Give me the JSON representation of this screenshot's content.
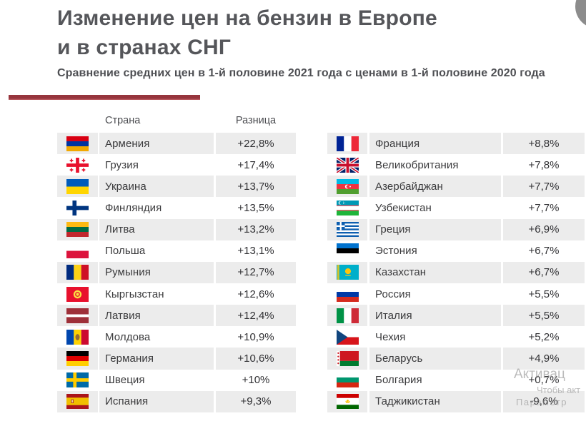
{
  "header": {
    "title_line1": "Изменение цен на бензин в Европе",
    "title_line2": "и в странах СНГ",
    "subtitle": "Сравнение средних цен в 1-й половине 2021 года с ценами в 1-й половине 2020 года"
  },
  "table": {
    "headers": {
      "country": "Страна",
      "difference": "Разница"
    },
    "left_rows": [
      {
        "country": "Армения",
        "difference": "+22,8%",
        "flag": "armenia"
      },
      {
        "country": "Грузия",
        "difference": "+17,4%",
        "flag": "georgia"
      },
      {
        "country": "Украина",
        "difference": "+13,7%",
        "flag": "ukraine"
      },
      {
        "country": "Финляндия",
        "difference": "+13,5%",
        "flag": "finland"
      },
      {
        "country": "Литва",
        "difference": "+13,2%",
        "flag": "lithuania"
      },
      {
        "country": "Польша",
        "difference": "+13,1%",
        "flag": "poland"
      },
      {
        "country": "Румыния",
        "difference": "+12,7%",
        "flag": "romania"
      },
      {
        "country": "Кыргызстан",
        "difference": "+12,6%",
        "flag": "kyrgyzstan"
      },
      {
        "country": "Латвия",
        "difference": "+12,4%",
        "flag": "latvia"
      },
      {
        "country": "Молдова",
        "difference": "+10,9%",
        "flag": "moldova"
      },
      {
        "country": "Германия",
        "difference": "+10,6%",
        "flag": "germany"
      },
      {
        "country": "Швеция",
        "difference": "+10%",
        "flag": "sweden"
      },
      {
        "country": "Испания",
        "difference": "+9,3%",
        "flag": "spain"
      }
    ],
    "right_rows": [
      {
        "country": "Франция",
        "difference": "+8,8%",
        "flag": "france"
      },
      {
        "country": "Великобритания",
        "difference": "+7,8%",
        "flag": "uk"
      },
      {
        "country": "Азербайджан",
        "difference": "+7,7%",
        "flag": "azerbaijan"
      },
      {
        "country": "Узбекистан",
        "difference": "+7,7%",
        "flag": "uzbekistan"
      },
      {
        "country": "Греция",
        "difference": "+6,9%",
        "flag": "greece"
      },
      {
        "country": "Эстония",
        "difference": "+6,7%",
        "flag": "estonia"
      },
      {
        "country": "Казахстан",
        "difference": "+6,7%",
        "flag": "kazakhstan"
      },
      {
        "country": "Россия",
        "difference": "+5,5%",
        "flag": "russia"
      },
      {
        "country": "Италия",
        "difference": "+5,5%",
        "flag": "italy"
      },
      {
        "country": "Чехия",
        "difference": "+5,2%",
        "flag": "czechia"
      },
      {
        "country": "Беларусь",
        "difference": "+4,9%",
        "flag": "belarus"
      },
      {
        "country": "Болгария",
        "difference": "+0,7%",
        "flag": "bulgaria"
      },
      {
        "country": "Таджикистан",
        "difference": "-9,6%",
        "flag": "tajikistan"
      }
    ]
  },
  "watermark": {
    "line1": "Активац",
    "line2": "Чтобы акт",
    "line3": "Параметр"
  },
  "colors": {
    "accent_red": "#96353D",
    "row_stripe": "#ECECEC",
    "title_text": "#55565A",
    "corner_circle": "#8C8C8C",
    "watermark_gray": "#8F8F8F"
  },
  "chart_data": {
    "type": "table",
    "title": "Изменение цен на бензин в Европе и в странах СНГ",
    "subtitle": "Сравнение средних цен в 1-й половине 2021 года с ценами в 1-й половине 2020 года",
    "columns": [
      "Страна",
      "Разница"
    ],
    "categories": [
      "Армения",
      "Грузия",
      "Украина",
      "Финляндия",
      "Литва",
      "Польша",
      "Румыния",
      "Кыргызстан",
      "Латвия",
      "Молдова",
      "Германия",
      "Швеция",
      "Испания",
      "Франция",
      "Великобритания",
      "Азербайджан",
      "Узбекистан",
      "Греция",
      "Эстония",
      "Казахстан",
      "Россия",
      "Италия",
      "Чехия",
      "Беларусь",
      "Болгария",
      "Таджикистан"
    ],
    "series": [
      {
        "name": "Разница, %",
        "values": [
          22.8,
          17.4,
          13.7,
          13.5,
          13.2,
          13.1,
          12.7,
          12.6,
          12.4,
          10.9,
          10.6,
          10,
          9.3,
          8.8,
          7.8,
          7.7,
          7.7,
          6.9,
          6.7,
          6.7,
          5.5,
          5.5,
          5.2,
          4.9,
          0.7,
          -9.6
        ]
      }
    ]
  }
}
